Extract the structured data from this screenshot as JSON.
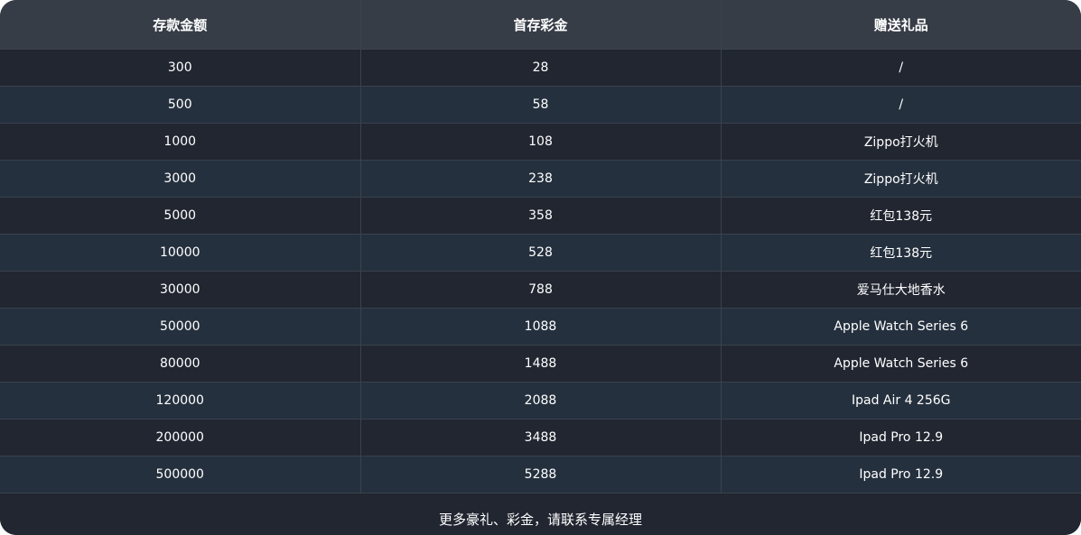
{
  "table": {
    "headers": [
      "存款金额",
      "首存彩金",
      "赠送礼品"
    ],
    "rows": [
      [
        "300",
        "28",
        "/"
      ],
      [
        "500",
        "58",
        "/"
      ],
      [
        "1000",
        "108",
        "Zippo打火机"
      ],
      [
        "3000",
        "238",
        "Zippo打火机"
      ],
      [
        "5000",
        "358",
        "红包138元"
      ],
      [
        "10000",
        "528",
        "红包138元"
      ],
      [
        "30000",
        "788",
        "爱马仕大地香水"
      ],
      [
        "50000",
        "1088",
        "Apple Watch Series 6"
      ],
      [
        "80000",
        "1488",
        "Apple Watch Series 6"
      ],
      [
        "120000",
        "2088",
        "Ipad Air 4 256G"
      ],
      [
        "200000",
        "3488",
        "Ipad Pro 12.9"
      ],
      [
        "500000",
        "5288",
        "Ipad Pro 12.9"
      ]
    ]
  },
  "footer": "更多豪礼、彩金，请联系专属经理",
  "colors": {
    "header_bg": "#373d47",
    "row_odd": "#212631",
    "row_even": "#25303e",
    "border": "#3a424d"
  }
}
